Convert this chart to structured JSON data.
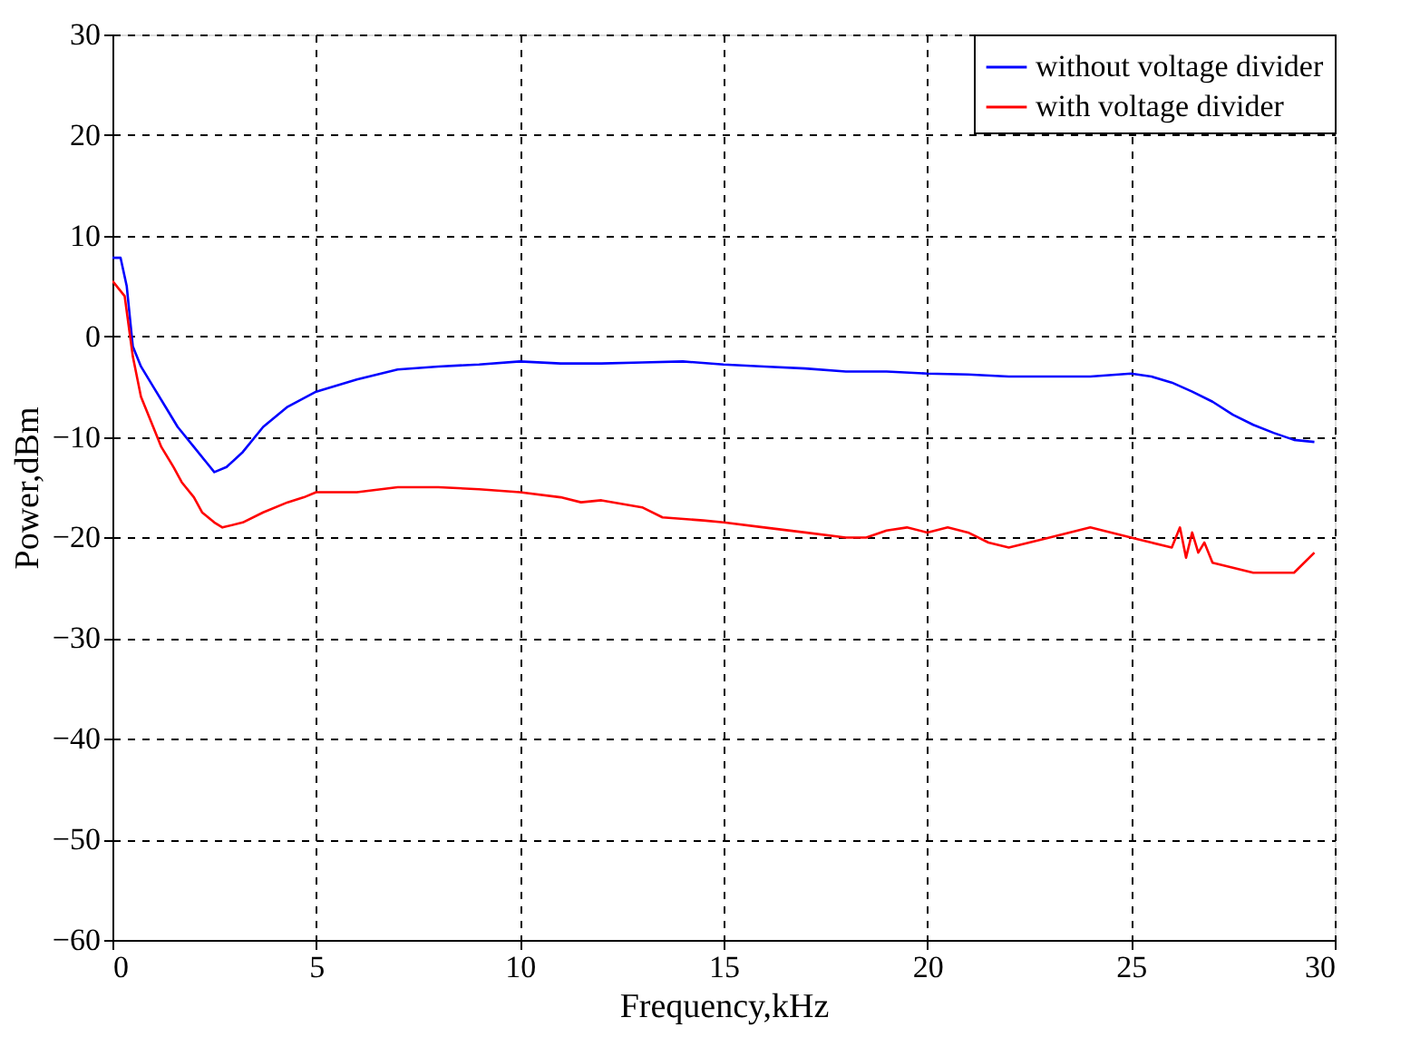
{
  "chart_data": {
    "type": "line",
    "xlabel": "Frequency,kHz",
    "ylabel": "Power,dBm",
    "xlim": [
      0,
      30
    ],
    "xticks": [
      0,
      5,
      10,
      15,
      20,
      25,
      30
    ],
    "ylim": [
      -60,
      30
    ],
    "yticks": [
      -60,
      -50,
      -40,
      -30,
      -20,
      -10,
      0,
      10,
      20,
      30
    ],
    "grid": true,
    "legend": "top right",
    "line_style": "solid",
    "marker": "none",
    "series": [
      {
        "name": "without voltage divider",
        "color": "#0000ff",
        "x": [
          0,
          0.2,
          0.35,
          0.5,
          0.7,
          1.0,
          1.3,
          1.6,
          2.0,
          2.3,
          2.5,
          2.8,
          3.2,
          3.7,
          4.3,
          5.0,
          6.0,
          7.0,
          8.0,
          9.0,
          10.0,
          11.0,
          12.0,
          13.0,
          14.0,
          15.0,
          16.0,
          17.0,
          18.0,
          19.0,
          20.0,
          21.0,
          22.0,
          23.0,
          24.0,
          25.0,
          25.5,
          26.0,
          26.5,
          27.0,
          27.5,
          28.0,
          28.5,
          29.0,
          29.5
        ],
        "values": [
          7.8,
          7.8,
          5,
          -1,
          -3,
          -5,
          -7,
          -9,
          -11,
          -12.5,
          -13.5,
          -13,
          -11.5,
          -9,
          -7,
          -5.5,
          -4.3,
          -3.3,
          -3,
          -2.8,
          -2.5,
          -2.7,
          -2.7,
          -2.6,
          -2.5,
          -2.8,
          -3,
          -3.2,
          -3.5,
          -3.5,
          -3.7,
          -3.8,
          -4,
          -4,
          -4,
          -3.7,
          -4,
          -4.6,
          -5.5,
          -6.5,
          -7.8,
          -8.8,
          -9.6,
          -10.3,
          -10.5
        ]
      },
      {
        "name": "with voltage divider",
        "color": "#ff0000",
        "x": [
          0,
          0.3,
          0.5,
          0.7,
          1.0,
          1.2,
          1.5,
          1.7,
          2.0,
          2.2,
          2.5,
          2.7,
          3.2,
          3.7,
          4.3,
          4.7,
          5.0,
          6.0,
          7.0,
          8.0,
          9.0,
          10.0,
          11.0,
          11.5,
          12.0,
          13.0,
          13.5,
          14.5,
          15.0,
          16.0,
          17.0,
          18.0,
          18.5,
          19.0,
          19.5,
          20.0,
          20.5,
          21.0,
          21.5,
          22.0,
          23.0,
          24.0,
          25.0,
          25.5,
          26.0,
          26.2,
          26.35,
          26.5,
          26.65,
          26.8,
          27.0,
          28.0,
          29.0,
          29.5
        ],
        "values": [
          5.5,
          4,
          -2,
          -6,
          -9,
          -11,
          -13,
          -14.5,
          -16,
          -17.5,
          -18.5,
          -19,
          -18.5,
          -17.5,
          -16.5,
          -16,
          -15.5,
          -15.5,
          -15,
          -15,
          -15.2,
          -15.5,
          -16,
          -16.5,
          -16.3,
          -17,
          -18,
          -18.3,
          -18.5,
          -19,
          -19.5,
          -20,
          -20,
          -19.3,
          -19,
          -19.5,
          -19,
          -19.5,
          -20.5,
          -21,
          -20,
          -19,
          -20,
          -20.5,
          -21,
          -19,
          -22,
          -19.5,
          -21.5,
          -20.5,
          -22.5,
          -23.5,
          -23.5,
          -21.5
        ]
      }
    ]
  }
}
